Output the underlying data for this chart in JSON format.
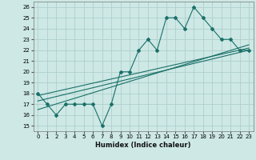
{
  "xlabel": "Humidex (Indice chaleur)",
  "background_color": "#cde8e5",
  "grid_color": "#afd0cc",
  "line_color": "#1a7068",
  "xlim": [
    -0.5,
    23.5
  ],
  "ylim": [
    14.5,
    26.5
  ],
  "xticks": [
    0,
    1,
    2,
    3,
    4,
    5,
    6,
    7,
    8,
    9,
    10,
    11,
    12,
    13,
    14,
    15,
    16,
    17,
    18,
    19,
    20,
    21,
    22,
    23
  ],
  "yticks": [
    15,
    16,
    17,
    18,
    19,
    20,
    21,
    22,
    23,
    24,
    25,
    26
  ],
  "scatter_x": [
    0,
    1,
    2,
    3,
    4,
    5,
    6,
    7,
    8,
    9,
    10,
    11,
    12,
    13,
    14,
    15,
    16,
    17,
    18,
    19,
    20,
    21,
    22,
    23
  ],
  "scatter_y": [
    18,
    17,
    16,
    17,
    17,
    17,
    17,
    15,
    17,
    20,
    20,
    22,
    23,
    22,
    25,
    25,
    24,
    26,
    25,
    24,
    23,
    23,
    22,
    22
  ],
  "line1_x": [
    0,
    23
  ],
  "line1_y": [
    17.8,
    22.2
  ],
  "line2_x": [
    0,
    23
  ],
  "line2_y": [
    17.3,
    22.0
  ],
  "line3_x": [
    0,
    23
  ],
  "line3_y": [
    16.5,
    22.5
  ]
}
